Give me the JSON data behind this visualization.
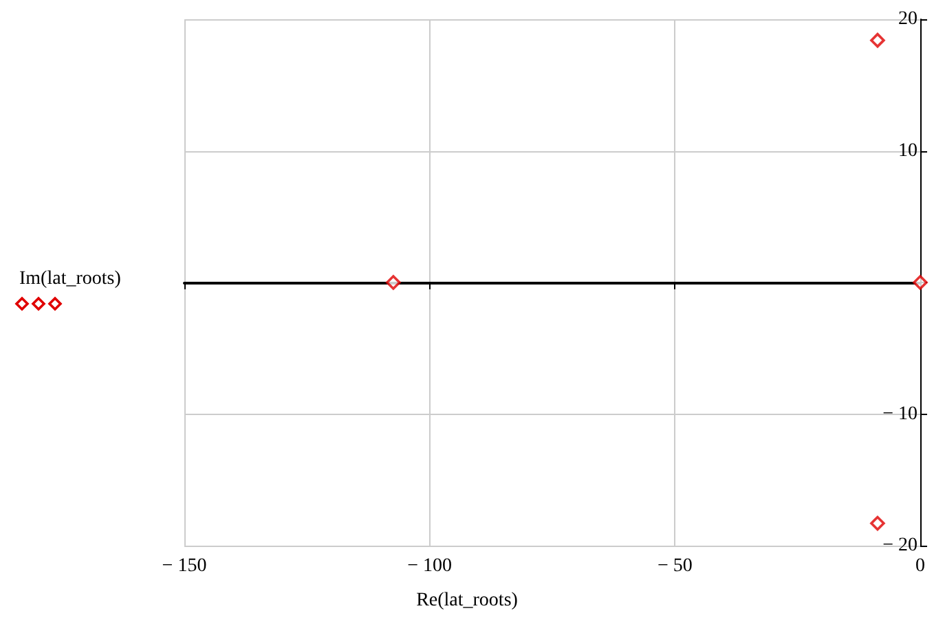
{
  "chart_data": {
    "type": "scatter",
    "xlabel": "Re(lat_roots)",
    "ylabel": "Im(lat_roots)",
    "x": [
      -107.4,
      -8.7,
      -8.7,
      0
    ],
    "series": [
      {
        "color": "#e00000",
        "values": [
          0,
          18.4,
          -18.3,
          0
        ]
      }
    ],
    "xlim": [
      -150,
      0
    ],
    "ylim": [
      -20,
      20
    ],
    "xticks": [
      -150,
      -100,
      -50,
      0
    ],
    "yticks": [
      -20,
      -10,
      {
        "value": 0,
        "label": null
      },
      10,
      20
    ],
    "grid": true,
    "marker": "diamond"
  }
}
